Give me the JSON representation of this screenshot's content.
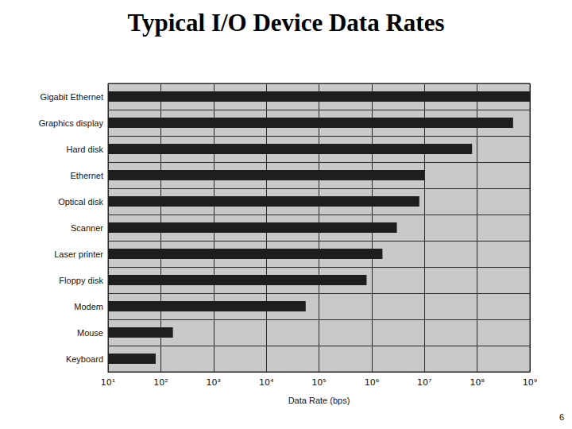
{
  "chart_data": {
    "type": "bar",
    "title": "Typical I/O Device Data Rates",
    "orientation": "horizontal",
    "log": "x",
    "grid": true,
    "color": "#1e1e1e",
    "xlabel": "Data Rate (bps)",
    "categories": [
      "Gigabit Ethernet",
      "Graphics display",
      "Hard disk",
      "Ethernet",
      "Optical disk",
      "Scanner",
      "Laser printer",
      "Floppy disk",
      "Modem",
      "Mouse",
      "Keyboard"
    ],
    "values": [
      1000000000,
      480000000,
      80000000,
      10000000,
      8000000,
      3000000,
      1600000,
      800000,
      56000,
      170,
      80
    ],
    "xlim": [
      10,
      1000000000
    ],
    "xticks": [
      {
        "value": 10,
        "label": "10¹"
      },
      {
        "value": 100,
        "label": "10²"
      },
      {
        "value": 1000,
        "label": "10³"
      },
      {
        "value": 10000,
        "label": "10⁴"
      },
      {
        "value": 100000,
        "label": "10⁵"
      },
      {
        "value": 1000000,
        "label": "10⁶"
      },
      {
        "value": 10000000,
        "label": "10⁷"
      },
      {
        "value": 100000000,
        "label": "10⁸"
      },
      {
        "value": 1000000000,
        "label": "10⁹"
      }
    ],
    "annotations": [
      "6"
    ]
  }
}
